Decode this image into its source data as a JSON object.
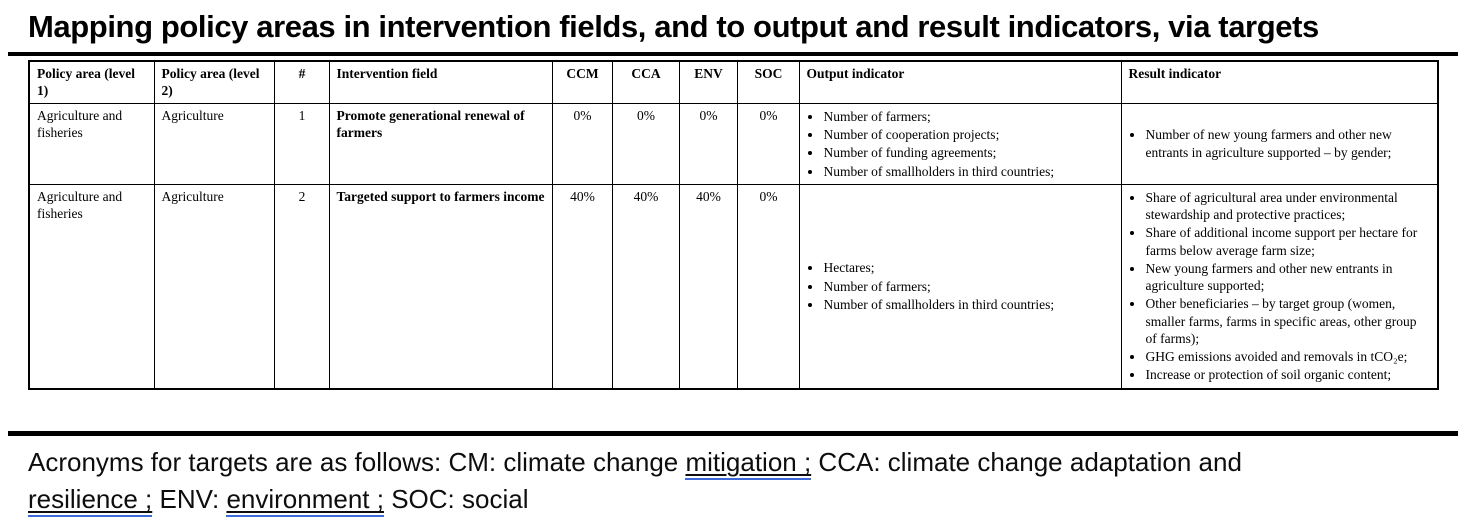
{
  "title": "Mapping policy areas in intervention fields, and to output and result indicators, via targets",
  "colors": {
    "underline_blue": "#3C6BD9",
    "text": "#000000",
    "table_border": "#000000"
  },
  "table": {
    "headers": [
      "Policy area (level 1)",
      "Policy area (level 2)",
      "#",
      "Intervention field",
      "CCM",
      "CCA",
      "ENV",
      "SOC",
      "Output indicator",
      "Result indicator"
    ],
    "rows": [
      {
        "policy_area_l1": "Agriculture and fisheries",
        "policy_area_l2": "Agriculture",
        "num": "1",
        "intervention_field": "Promote generational renewal of farmers",
        "ccm": "0%",
        "cca": "0%",
        "env": "0%",
        "soc": "0%",
        "output_indicators": [
          "Number of farmers;",
          "Number of cooperation projects;",
          "Number of funding agreements;",
          "Number of smallholders in third countries;"
        ],
        "result_indicators": [
          "Number of new young farmers and other new entrants in agriculture supported – by gender;"
        ]
      },
      {
        "policy_area_l1": "Agriculture and fisheries",
        "policy_area_l2": "Agriculture",
        "num": "2",
        "intervention_field": "Targeted support to farmers income",
        "ccm": "40%",
        "cca": "40%",
        "env": "40%",
        "soc": "0%",
        "output_indicators": [
          "Hectares;",
          "Number of farmers;",
          "Number of smallholders in third countries;"
        ],
        "result_indicators": [
          "Share of agricultural area under environmental stewardship and protective practices;",
          "Share of additional income support per hectare for farms below average farm size;",
          "New young farmers and other new entrants in agriculture supported;",
          "Other beneficiaries – by target group (women, smaller farms, farms in specific areas, other group of farms);",
          "GHG emissions avoided and removals in tCO₂e;",
          "Increase or protection of soil organic content;"
        ]
      }
    ]
  },
  "footnote": {
    "lines": [
      [
        {
          "text": "Acronyms for targets are as follows: CM: climate change ",
          "u": false
        },
        {
          "text": "mitigation ;",
          "u": true
        },
        {
          "text": " CCA: climate change adaptation and",
          "u": false
        }
      ],
      [
        {
          "text": "resilience ;",
          "u": true
        },
        {
          "text": " ENV: ",
          "u": false
        },
        {
          "text": "environment ;",
          "u": true
        },
        {
          "text": " SOC: social",
          "u": false
        }
      ]
    ]
  }
}
